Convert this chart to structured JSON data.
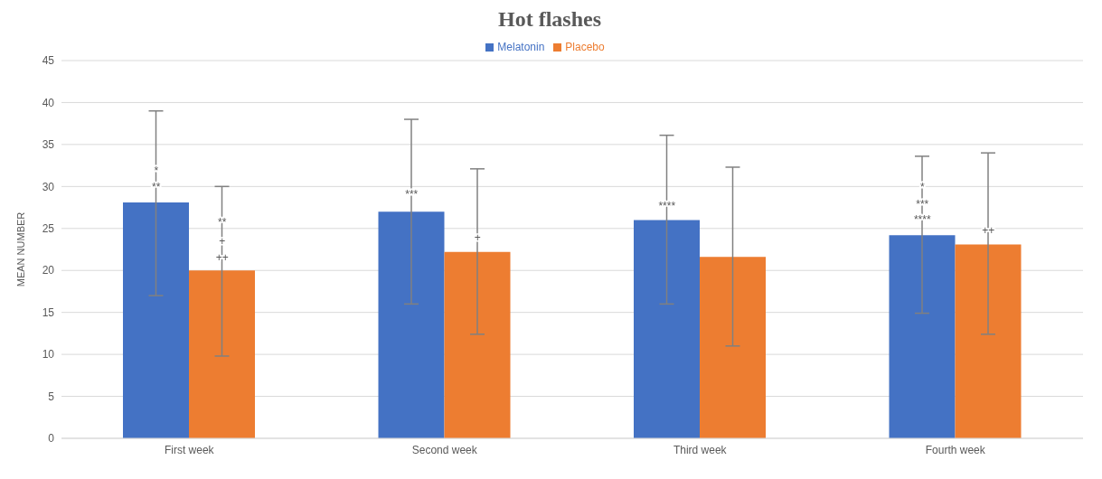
{
  "chart_data": {
    "type": "bar",
    "title": "Hot flashes",
    "ylabel": "MEAN NUMBER",
    "categories": [
      "First week",
      "Second week",
      "Third week",
      "Fourth week"
    ],
    "series": [
      {
        "name": "Melatonin",
        "color": "#4472c4",
        "values": [
          28.1,
          27,
          26,
          24.2
        ],
        "errors": [
          [
            17,
            39
          ],
          [
            16,
            38
          ],
          [
            16,
            36.1
          ],
          [
            14.9,
            33.6
          ]
        ]
      },
      {
        "name": "Placebo",
        "color": "#ed7d31",
        "values": [
          20,
          22.2,
          21.6,
          23.1
        ],
        "errors": [
          [
            9.8,
            30
          ],
          [
            12.4,
            32.1
          ],
          [
            11,
            32.3
          ],
          [
            12.4,
            34
          ]
        ]
      }
    ],
    "ylim": [
      0,
      45
    ],
    "yticks": [
      0,
      5,
      10,
      15,
      20,
      25,
      30,
      35,
      40,
      45
    ],
    "grid": "y",
    "legend": "top",
    "annotations": [
      "*",
      "**",
      "**",
      "+",
      "++",
      "***",
      "+",
      "****",
      "*",
      "***",
      "****",
      "++"
    ]
  }
}
